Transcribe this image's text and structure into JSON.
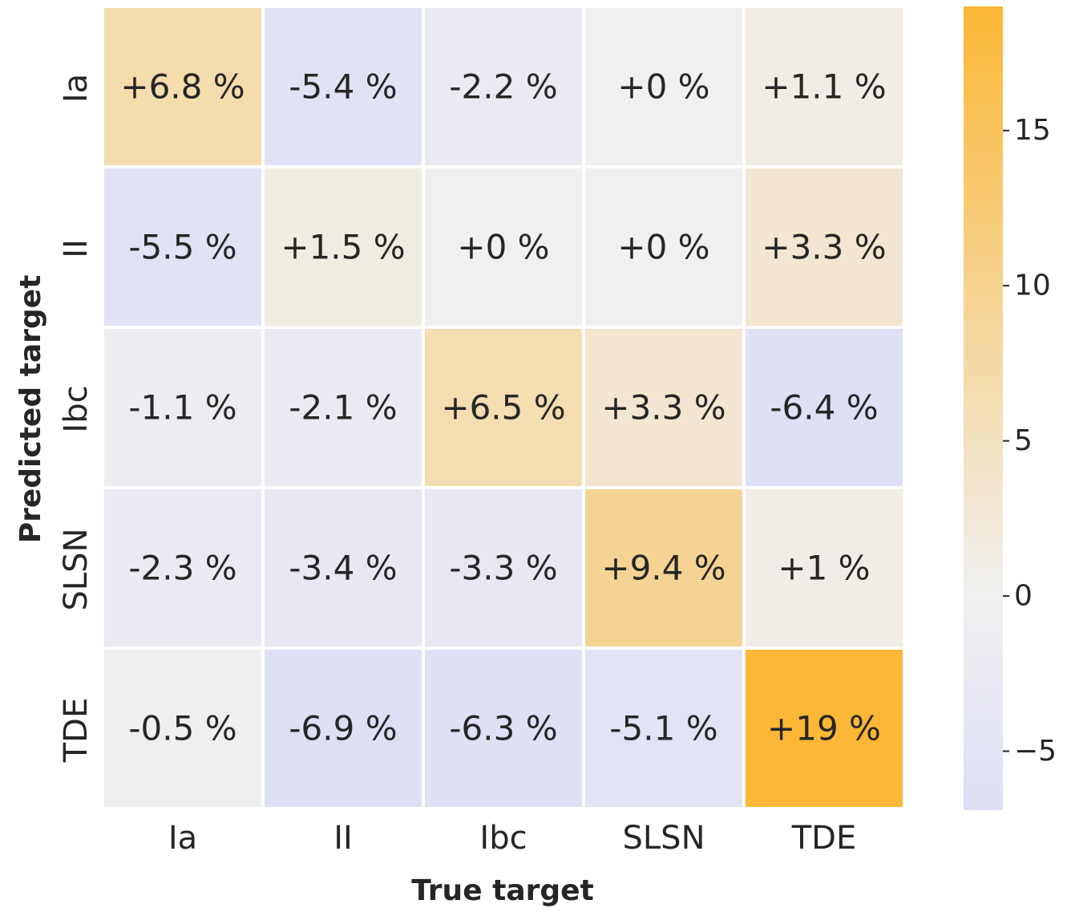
{
  "chart_data": {
    "type": "heatmap",
    "title": "",
    "xlabel": "True target",
    "ylabel": "Predicted target",
    "x_categories": [
      "Ia",
      "II",
      "Ibc",
      "SLSN",
      "TDE"
    ],
    "y_categories": [
      "Ia",
      "II",
      "Ibc",
      "SLSN",
      "TDE"
    ],
    "values": [
      [
        6.8,
        -5.4,
        -2.2,
        0,
        1.1
      ],
      [
        -5.5,
        1.5,
        0,
        0,
        3.3
      ],
      [
        -1.1,
        -2.1,
        6.5,
        3.3,
        -6.4
      ],
      [
        -2.3,
        -3.4,
        -3.3,
        9.4,
        1
      ],
      [
        -0.5,
        -6.9,
        -6.3,
        -5.1,
        19
      ]
    ],
    "labels": [
      [
        "+6.8 %",
        "-5.4 %",
        "-2.2 %",
        "+0 %",
        "+1.1 %"
      ],
      [
        "-5.5 %",
        "+1.5 %",
        "+0 %",
        "+0 %",
        "+3.3 %"
      ],
      [
        "-1.1 %",
        "-2.1 %",
        "+6.5 %",
        "+3.3 %",
        "-6.4 %"
      ],
      [
        "-2.3 %",
        "-3.4 %",
        "-3.3 %",
        "+9.4 %",
        "+1 %"
      ],
      [
        "-0.5 %",
        "-6.9 %",
        "-6.3 %",
        "-5.1 %",
        "+19 %"
      ]
    ],
    "colorbar": {
      "vmin": -6.9,
      "vmax": 19,
      "ticks": [
        -5,
        0,
        5,
        10,
        15
      ],
      "tick_labels": [
        "−5",
        "0",
        "5",
        "10",
        "15"
      ],
      "color_low": "#dddff5",
      "color_mid": "#f0f0f0",
      "color_high": "#fbb735"
    }
  }
}
